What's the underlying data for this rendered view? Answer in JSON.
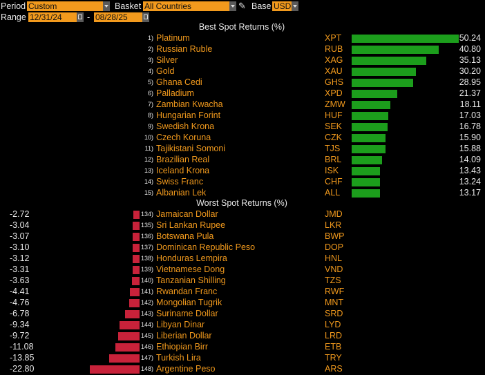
{
  "toolbar": {
    "period_label": "Period",
    "period_value": "Custom",
    "basket_label": "Basket",
    "basket_value": "All Countries",
    "base_label": "Base",
    "base_value": "USD",
    "range_label": "Range",
    "range_start": "12/31/24",
    "range_separator": "-",
    "range_end": "08/28/25"
  },
  "colors": {
    "accent": "#f29a1d",
    "positive": "#1c9e1c",
    "negative": "#c8223a",
    "background": "#000000"
  },
  "chart_data": {
    "type": "bar",
    "best": {
      "title": "Best Spot Returns (%)",
      "items": [
        {
          "rank": "1)",
          "name": "Platinum",
          "code": "XPT",
          "value": 50.24,
          "label": "50.24"
        },
        {
          "rank": "2)",
          "name": "Russian Ruble",
          "code": "RUB",
          "value": 40.8,
          "label": "40.80"
        },
        {
          "rank": "3)",
          "name": "Silver",
          "code": "XAG",
          "value": 35.13,
          "label": "35.13"
        },
        {
          "rank": "4)",
          "name": "Gold",
          "code": "XAU",
          "value": 30.2,
          "label": "30.20"
        },
        {
          "rank": "5)",
          "name": "Ghana Cedi",
          "code": "GHS",
          "value": 28.95,
          "label": "28.95"
        },
        {
          "rank": "6)",
          "name": "Palladium",
          "code": "XPD",
          "value": 21.37,
          "label": "21.37"
        },
        {
          "rank": "7)",
          "name": "Zambian Kwacha",
          "code": "ZMW",
          "value": 18.11,
          "label": "18.11"
        },
        {
          "rank": "8)",
          "name": "Hungarian Forint",
          "code": "HUF",
          "value": 17.03,
          "label": "17.03"
        },
        {
          "rank": "9)",
          "name": "Swedish Krona",
          "code": "SEK",
          "value": 16.78,
          "label": "16.78"
        },
        {
          "rank": "10)",
          "name": "Czech Koruna",
          "code": "CZK",
          "value": 15.9,
          "label": "15.90"
        },
        {
          "rank": "11)",
          "name": "Tajikistani Somoni",
          "code": "TJS",
          "value": 15.88,
          "label": "15.88"
        },
        {
          "rank": "12)",
          "name": "Brazilian Real",
          "code": "BRL",
          "value": 14.09,
          "label": "14.09"
        },
        {
          "rank": "13)",
          "name": "Iceland Krona",
          "code": "ISK",
          "value": 13.43,
          "label": "13.43"
        },
        {
          "rank": "14)",
          "name": "Swiss Franc",
          "code": "CHF",
          "value": 13.24,
          "label": "13.24"
        },
        {
          "rank": "15)",
          "name": "Albanian Lek",
          "code": "ALL",
          "value": 13.17,
          "label": "13.17"
        }
      ]
    },
    "worst": {
      "title": "Worst Spot Returns (%)",
      "items": [
        {
          "rank": "134)",
          "name": "Jamaican Dollar",
          "code": "JMD",
          "value": -2.72,
          "label": "-2.72"
        },
        {
          "rank": "135)",
          "name": "Sri Lankan Rupee",
          "code": "LKR",
          "value": -3.04,
          "label": "-3.04"
        },
        {
          "rank": "136)",
          "name": "Botswana Pula",
          "code": "BWP",
          "value": -3.07,
          "label": "-3.07"
        },
        {
          "rank": "137)",
          "name": "Dominican Republic Peso",
          "code": "DOP",
          "value": -3.1,
          "label": "-3.10"
        },
        {
          "rank": "138)",
          "name": "Honduras Lempira",
          "code": "HNL",
          "value": -3.12,
          "label": "-3.12"
        },
        {
          "rank": "139)",
          "name": "Vietnamese Dong",
          "code": "VND",
          "value": -3.31,
          "label": "-3.31"
        },
        {
          "rank": "140)",
          "name": "Tanzanian Shilling",
          "code": "TZS",
          "value": -3.63,
          "label": "-3.63"
        },
        {
          "rank": "141)",
          "name": "Rwandan Franc",
          "code": "RWF",
          "value": -4.41,
          "label": "-4.41"
        },
        {
          "rank": "142)",
          "name": "Mongolian Tugrik",
          "code": "MNT",
          "value": -4.76,
          "label": "-4.76"
        },
        {
          "rank": "143)",
          "name": "Suriname Dollar",
          "code": "SRD",
          "value": -6.78,
          "label": "-6.78"
        },
        {
          "rank": "144)",
          "name": "Libyan Dinar",
          "code": "LYD",
          "value": -9.34,
          "label": "-9.34"
        },
        {
          "rank": "145)",
          "name": "Liberian Dollar",
          "code": "LRD",
          "value": -9.72,
          "label": "-9.72"
        },
        {
          "rank": "146)",
          "name": "Ethiopian Birr",
          "code": "ETB",
          "value": -11.08,
          "label": "-11.08"
        },
        {
          "rank": "147)",
          "name": "Turkish Lira",
          "code": "TRY",
          "value": -13.85,
          "label": "-13.85"
        },
        {
          "rank": "148)",
          "name": "Argentine Peso",
          "code": "ARS",
          "value": -22.8,
          "label": "-22.80"
        }
      ]
    }
  }
}
